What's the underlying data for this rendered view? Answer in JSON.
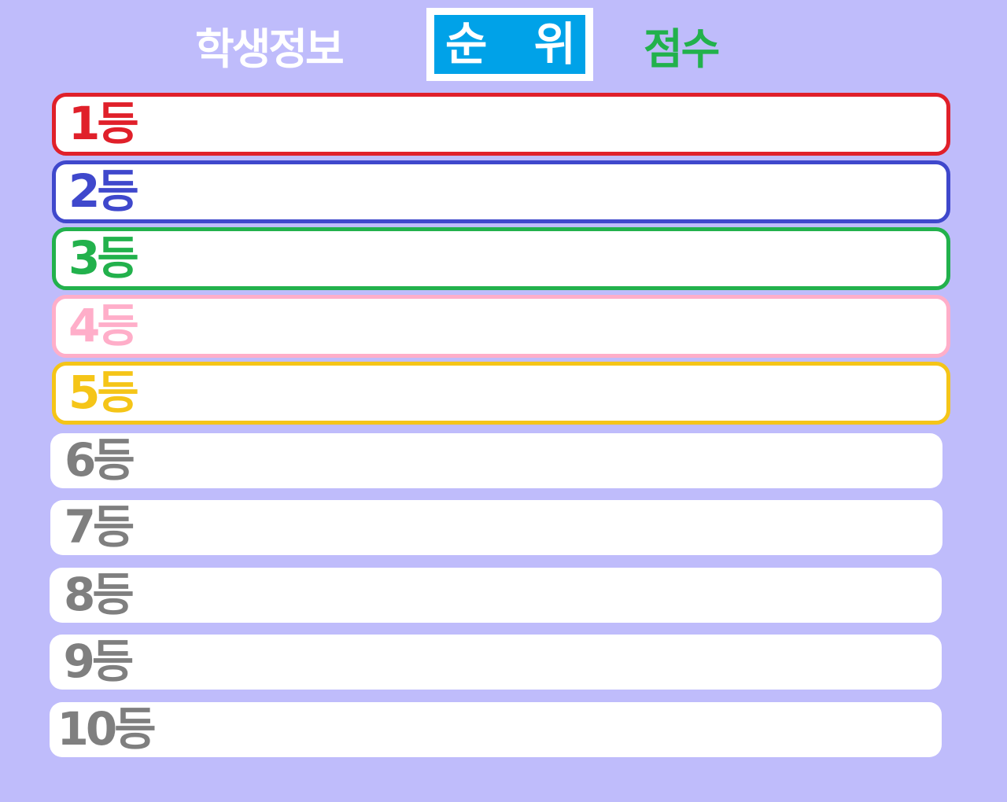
{
  "tabs": {
    "student_info": "학생정보",
    "rank": [
      "순",
      "위"
    ],
    "score": "점수"
  },
  "colors": {
    "background": "#bfbcfb",
    "tab_active": "#00a2e8",
    "score_tab": "#22b14c",
    "rank1": "#e0202a",
    "rank2": "#3f48cc",
    "rank3": "#22b14c",
    "rank4": "#ffaec9",
    "rank5": "#f5c518",
    "rank_other": "#7f7f7f"
  },
  "rankings": [
    {
      "label": "1등",
      "color": "#e0202a",
      "bordered": true
    },
    {
      "label": "2등",
      "color": "#3f48cc",
      "bordered": true
    },
    {
      "label": "3등",
      "color": "#22b14c",
      "bordered": true
    },
    {
      "label": "4등",
      "color": "#ffaec9",
      "bordered": true
    },
    {
      "label": "5등",
      "color": "#f5c518",
      "bordered": true
    },
    {
      "label": "6등",
      "color": "#7f7f7f",
      "bordered": false
    },
    {
      "label": "7등",
      "color": "#7f7f7f",
      "bordered": false
    },
    {
      "label": "8등",
      "color": "#7f7f7f",
      "bordered": false
    },
    {
      "label": "9등",
      "color": "#7f7f7f",
      "bordered": false
    },
    {
      "label": "10등",
      "color": "#7f7f7f",
      "bordered": false
    }
  ]
}
